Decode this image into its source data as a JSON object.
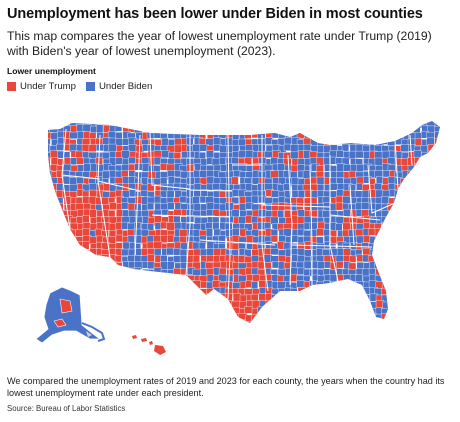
{
  "title": "Unemployment has been lower under Biden in most counties",
  "subtitle": "This map compares the year of lowest unemployment rate under Trump (2019) with Biden's year of lowest unemployment (2023).",
  "legend": {
    "title": "Lower unemployment",
    "items": [
      {
        "label": "Under Trump",
        "color": "#e8473b"
      },
      {
        "label": "Under Biden",
        "color": "#4a73c8"
      }
    ]
  },
  "colors": {
    "trump": "#e8473b",
    "biden": "#4a73c8",
    "border": "#ffffff"
  },
  "note": "We compared the unemployment rates of 2019 and 2023 for each county, the years when the country had its lowest unemployment rate under each president.",
  "source": "Source: Bureau of Labor Statistics"
}
